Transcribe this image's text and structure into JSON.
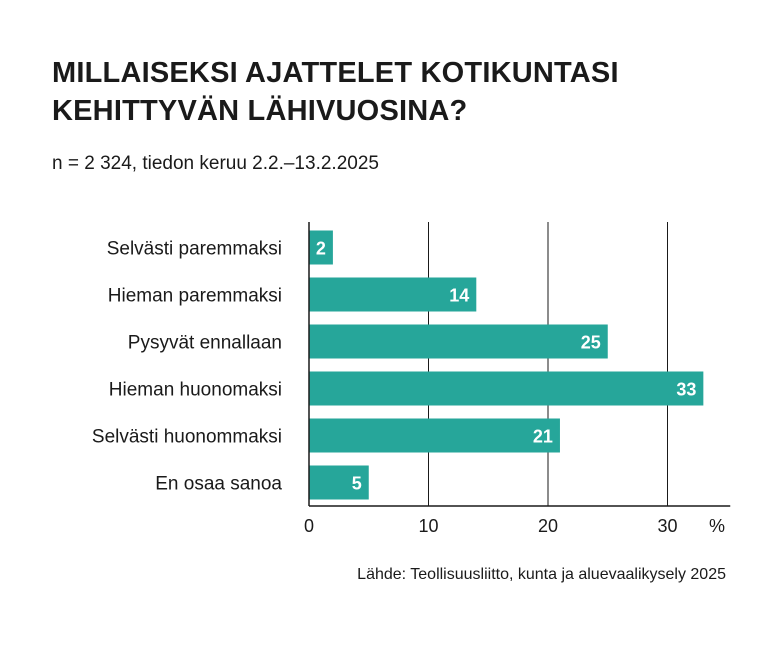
{
  "chart_data": {
    "type": "bar",
    "orientation": "horizontal",
    "title": "MILLAISEKSI AJATTELET KOTIKUNTASI KEHITTYVÄN LÄHIVUOSINA?",
    "subtitle": "n = 2 324, tiedon keruu 2.2.–13.2.2025",
    "categories": [
      "Selvästi paremmaksi",
      "Hieman paremmaksi",
      "Pysyvät ennallaan",
      "Hieman huonomaksi",
      "Selvästi huonommaksi",
      "En osaa sanoa"
    ],
    "values": [
      2,
      14,
      25,
      33,
      21,
      5
    ],
    "xlim": [
      0,
      35
    ],
    "xticks": [
      0,
      10,
      20,
      30
    ],
    "xunit": "%",
    "grid": true,
    "bar_color": "#26a69a",
    "label_color": "#ffffff",
    "source": "Lähde: Teollisuusliitto, kunta ja aluevaalikysely 2025"
  }
}
